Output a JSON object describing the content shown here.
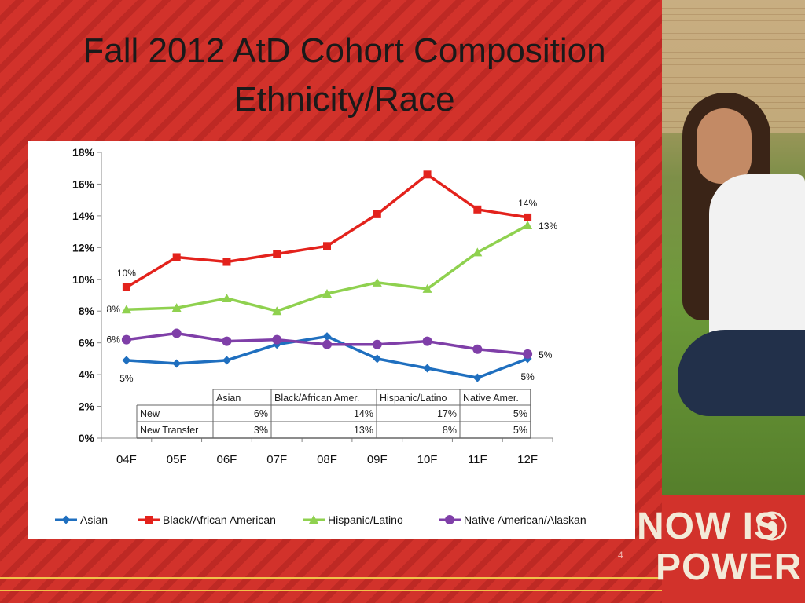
{
  "slide": {
    "title_line1": "Fall 2012 AtD Cohort Composition",
    "title_line2": "Ethnicity/Race",
    "page_number": "4",
    "logo_line1": "NOW IS",
    "logo_line2": "POWER",
    "colors": {
      "background": "#d2322b",
      "accent_lines": "#f0c24a"
    }
  },
  "chart_data": {
    "type": "line",
    "categories": [
      "04F",
      "05F",
      "06F",
      "07F",
      "08F",
      "09F",
      "10F",
      "11F",
      "12F"
    ],
    "ylim": [
      0,
      18
    ],
    "yticks": [
      "0%",
      "2%",
      "4%",
      "6%",
      "8%",
      "10%",
      "12%",
      "14%",
      "16%",
      "18%"
    ],
    "y_unit": "%",
    "legend_position": "bottom",
    "series": [
      {
        "name": "Asian",
        "color": "#1f6fbf",
        "marker": "diamond",
        "values": [
          4.9,
          4.7,
          4.9,
          5.9,
          6.4,
          5.0,
          4.4,
          3.8,
          5.0
        ]
      },
      {
        "name": "Black/African American",
        "color": "#e3221c",
        "marker": "square",
        "values": [
          9.5,
          11.4,
          11.1,
          11.6,
          12.1,
          14.1,
          16.6,
          14.4,
          13.9
        ]
      },
      {
        "name": "Hispanic/Latino",
        "color": "#8fd14f",
        "marker": "triangle",
        "values": [
          8.1,
          8.2,
          8.8,
          8.0,
          9.1,
          9.8,
          9.4,
          11.7,
          13.4
        ]
      },
      {
        "name": "Native American/Alaskan",
        "color": "#7f3fa8",
        "marker": "circle",
        "values": [
          6.2,
          6.6,
          6.1,
          6.2,
          5.9,
          5.9,
          6.1,
          5.6,
          5.3
        ]
      }
    ],
    "annotations": [
      {
        "text": "10%",
        "series": 1,
        "index": 0,
        "side": "above"
      },
      {
        "text": "8%",
        "series": 2,
        "index": 0,
        "side": "left"
      },
      {
        "text": "6%",
        "series": 3,
        "index": 0,
        "side": "left"
      },
      {
        "text": "5%",
        "series": 0,
        "index": 0,
        "side": "below"
      },
      {
        "text": "14%",
        "series": 1,
        "index": 8,
        "side": "above"
      },
      {
        "text": "13%",
        "series": 2,
        "index": 8,
        "side": "right"
      },
      {
        "text": "5%",
        "series": 3,
        "index": 8,
        "side": "right"
      },
      {
        "text": "5%",
        "series": 0,
        "index": 8,
        "side": "below"
      }
    ],
    "table": {
      "columns": [
        "",
        "Asian",
        "Black/African Amer.",
        "Hispanic/Latino",
        "Native Amer."
      ],
      "rows": [
        [
          "New",
          "6%",
          "14%",
          "17%",
          "5%"
        ],
        [
          "New Transfer",
          "3%",
          "13%",
          "8%",
          "5%"
        ]
      ]
    }
  }
}
